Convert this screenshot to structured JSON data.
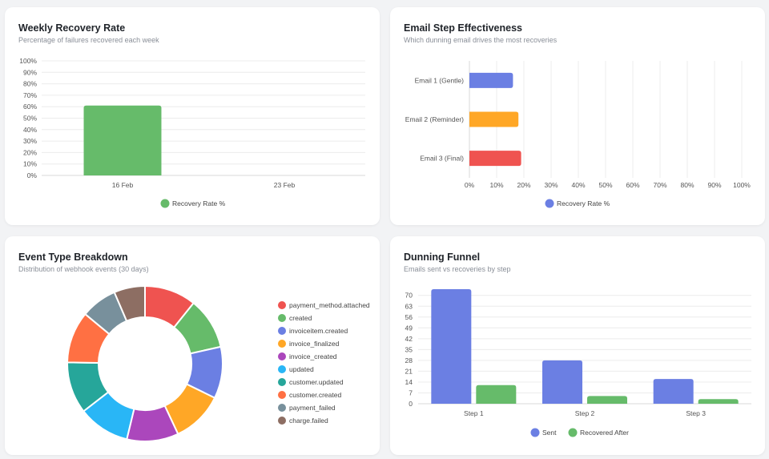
{
  "charts": [
    {
      "id": "weekly-recovery",
      "title": "Weekly Recovery Rate",
      "subtitle": "Percentage of failures recovered each week"
    },
    {
      "id": "email-step",
      "title": "Email Step Effectiveness",
      "subtitle": "Which dunning email drives the most recoveries"
    },
    {
      "id": "event-type",
      "title": "Event Type Breakdown",
      "subtitle": "Distribution of webhook events (30 days)"
    },
    {
      "id": "dunning-funnel",
      "title": "Dunning Funnel",
      "subtitle": "Emails sent vs recoveries by step"
    }
  ],
  "chart_data": [
    {
      "type": "bar",
      "title": "Weekly Recovery Rate",
      "subtitle": "Percentage of failures recovered each week",
      "categories": [
        "16 Feb",
        "23 Feb"
      ],
      "series": [
        {
          "name": "Recovery Rate %",
          "values": [
            61,
            0
          ],
          "color": "#66bb6a"
        }
      ],
      "ylim": [
        0,
        100
      ],
      "yticks": [
        "0%",
        "10%",
        "20%",
        "30%",
        "40%",
        "50%",
        "60%",
        "70%",
        "80%",
        "90%",
        "100%"
      ],
      "grid": true,
      "legend": "bottom"
    },
    {
      "type": "bar",
      "orientation": "horizontal",
      "title": "Email Step Effectiveness",
      "subtitle": "Which dunning email drives the most recoveries",
      "categories": [
        "Email 1 (Gentle)",
        "Email 2 (Reminder)",
        "Email 3 (Final)"
      ],
      "values": [
        16,
        18,
        19
      ],
      "colors": [
        "#6b7fe3",
        "#ffa726",
        "#ef5350"
      ],
      "series_name": "Recovery Rate %",
      "legend_color": "#6b7fe3",
      "xlim": [
        0,
        100
      ],
      "xticks": [
        "0%",
        "10%",
        "20%",
        "30%",
        "40%",
        "50%",
        "60%",
        "70%",
        "80%",
        "90%",
        "100%"
      ],
      "grid": true,
      "legend": "bottom"
    },
    {
      "type": "pie",
      "donut": true,
      "title": "Event Type Breakdown",
      "subtitle": "Distribution of webhook events (30 days)",
      "labels": [
        "payment_method.attached",
        "created",
        "invoiceitem.created",
        "invoice_finalized",
        "invoice_created",
        "updated",
        "customer.updated",
        "customer.created",
        "payment_failed",
        "charge.failed"
      ],
      "values": [
        10,
        10,
        10,
        10,
        10,
        10,
        10,
        10,
        7,
        6
      ],
      "colors": [
        "#ef5350",
        "#66bb6a",
        "#6b7fe3",
        "#ffa726",
        "#ab47bc",
        "#29b6f6",
        "#26a69a",
        "#ff7043",
        "#78909c",
        "#8d6e63"
      ],
      "legend": "right"
    },
    {
      "type": "bar",
      "title": "Dunning Funnel",
      "subtitle": "Emails sent vs recoveries by step",
      "categories": [
        "Step 1",
        "Step 2",
        "Step 3"
      ],
      "series": [
        {
          "name": "Sent",
          "values": [
            74,
            28,
            16
          ],
          "color": "#6b7fe3"
        },
        {
          "name": "Recovered After",
          "values": [
            12,
            5,
            3
          ],
          "color": "#66bb6a"
        }
      ],
      "ylim": [
        0,
        74
      ],
      "yticks": [
        "0",
        "7",
        "14",
        "21",
        "28",
        "35",
        "42",
        "49",
        "56",
        "63",
        "70"
      ],
      "grid": true,
      "legend": "bottom"
    }
  ]
}
